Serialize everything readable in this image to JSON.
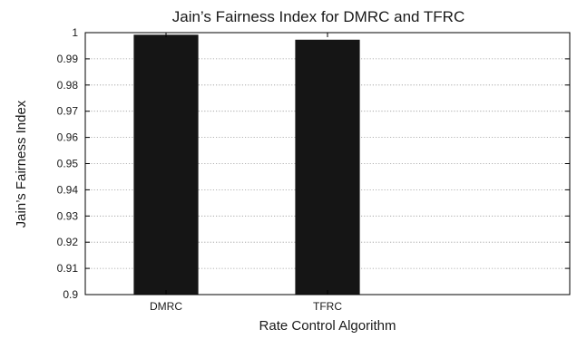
{
  "chart_data": {
    "type": "bar",
    "title": "Jain’s Fairness Index for DMRC and TFRC",
    "xlabel": "Rate Control Algorithm",
    "ylabel": "Jain’s Fairness Index",
    "categories": [
      "DMRC",
      "TFRC"
    ],
    "values": [
      0.9992,
      0.9973
    ],
    "xlim": [
      0.5,
      3.5
    ],
    "ylim": [
      0.9,
      1.0
    ],
    "yticks": [
      0.9,
      0.91,
      0.92,
      0.93,
      0.94,
      0.95,
      0.96,
      0.97,
      0.98,
      0.99,
      1
    ],
    "ytick_labels": [
      "0.9",
      "0.91",
      "0.92",
      "0.93",
      "0.94",
      "0.95",
      "0.96",
      "0.97",
      "0.98",
      "0.99",
      "1"
    ],
    "grid": "horizontal dotted",
    "legend": "none",
    "bar_color": "#151515"
  }
}
